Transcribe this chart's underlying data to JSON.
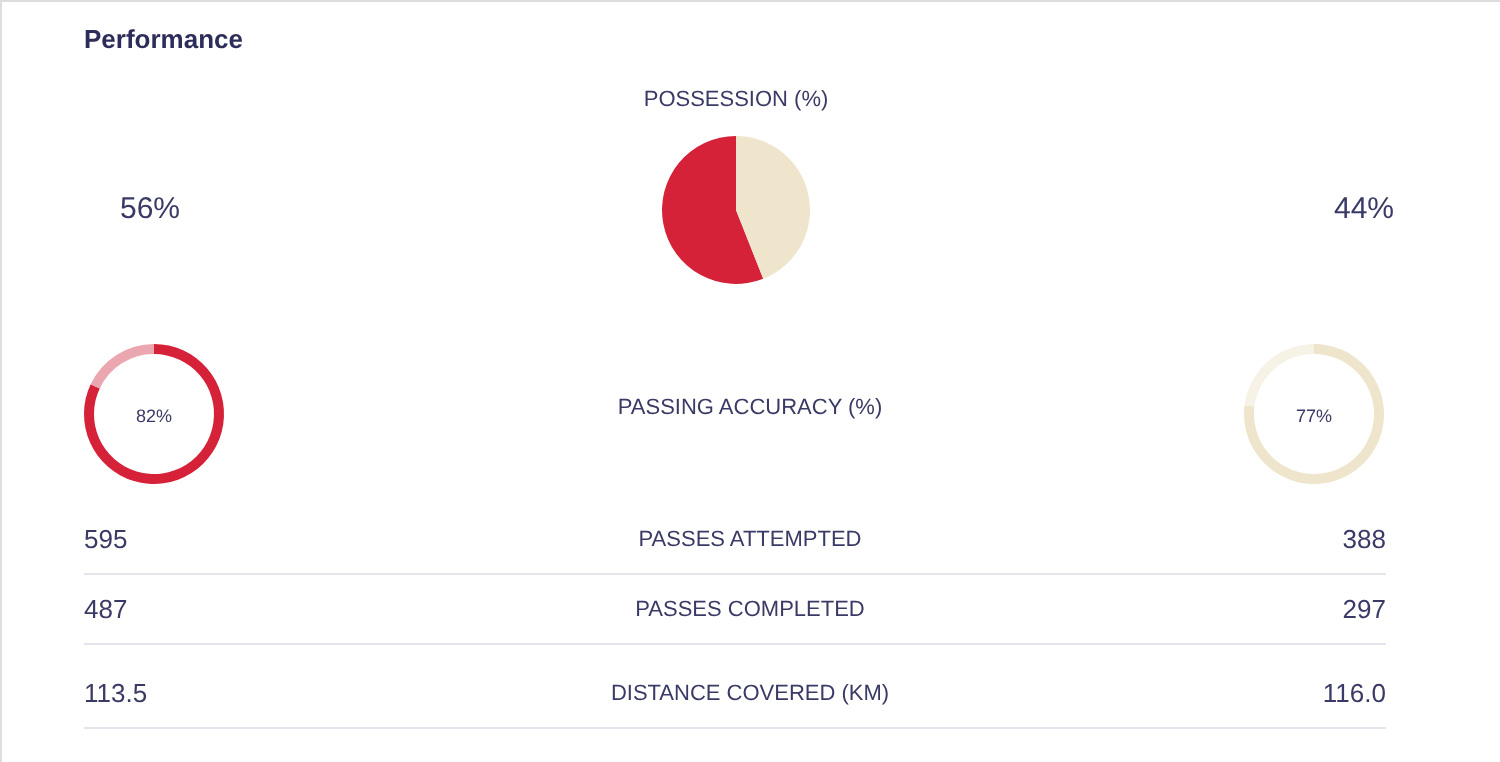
{
  "chart_data": [
    {
      "type": "other",
      "title": "Performance",
      "annotations": [
        "56%",
        "44%",
        "PASSING ACCURACY (%)",
        "595",
        "PASSES ATTEMPTED",
        "388",
        "487",
        "PASSES COMPLETED",
        "297",
        "113.5",
        "DISTANCE COVERED (KM)",
        "116.0"
      ]
    },
    {
      "type": "pie",
      "title": "POSSESSION (%)",
      "categories": [
        null,
        null
      ],
      "values": [
        56,
        44
      ],
      "colors": [
        "#d52239",
        "#efe5cd"
      ]
    },
    {
      "type": "donut",
      "categories": [
        null,
        null
      ],
      "values": [
        82,
        18
      ],
      "colors": [
        "#d52239",
        "#eba7b0"
      ],
      "value_labels": [
        "82%",
        null
      ]
    },
    {
      "type": "donut",
      "categories": [
        null,
        null
      ],
      "values": [
        77,
        23
      ],
      "colors": [
        "#efe5cd",
        "#f7f2e6"
      ],
      "value_labels": [
        "77%",
        null
      ]
    }
  ]
}
